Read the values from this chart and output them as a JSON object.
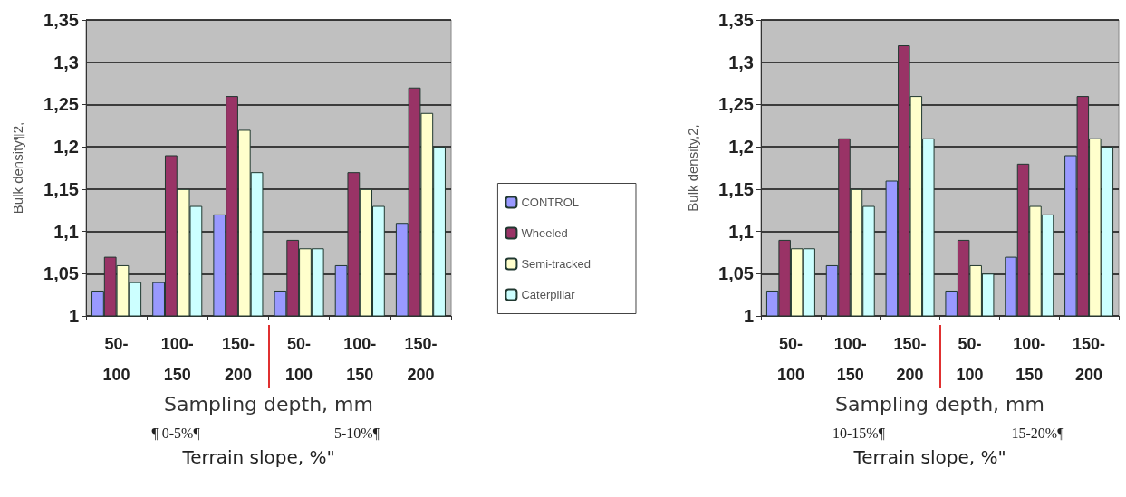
{
  "chart_data": [
    {
      "type": "bar",
      "ylabel": "Bulk density¶2,",
      "xlabel": "Sampling depth, mm",
      "categories": [
        "50-100",
        "100-150",
        "150-200",
        "50-100",
        "100-150",
        "150-200"
      ],
      "series": [
        {
          "name": "CONTROL",
          "color": "#9999ff",
          "values": [
            1.03,
            1.04,
            1.12,
            1.03,
            1.06,
            1.11
          ]
        },
        {
          "name": "Wheeled",
          "color": "#993366",
          "values": [
            1.07,
            1.19,
            1.26,
            1.09,
            1.17,
            1.27
          ]
        },
        {
          "name": "Semi-tracked",
          "color": "#ffffcc",
          "values": [
            1.06,
            1.15,
            1.22,
            1.08,
            1.15,
            1.24
          ]
        },
        {
          "name": "Caterpillar",
          "color": "#ccffff",
          "values": [
            1.04,
            1.13,
            1.17,
            1.08,
            1.13,
            1.2
          ]
        }
      ],
      "ylim": [
        1,
        1.35
      ],
      "yticks": [
        1,
        {
          "value": 1.05,
          "label": "1,05"
        },
        {
          "value": 1.1,
          "label": "1,1"
        },
        {
          "value": 1.15,
          "label": "1,15"
        },
        {
          "value": 1.2,
          "label": "1,2"
        },
        {
          "value": 1.25,
          "label": "1,25"
        },
        {
          "value": 1.3,
          "label": "1,3"
        },
        {
          "value": 1.35,
          "label": "1,35"
        }
      ],
      "grid": "y",
      "legend": "right",
      "annotations": [
        "¶ 0-5%¶",
        "5-10%¶",
        "Terrain slope, %\""
      ]
    },
    {
      "type": "bar",
      "ylabel": "Bulk density,2,",
      "xlabel": "Sampling depth, mm",
      "categories": [
        "50-100",
        "100-150",
        "150-200",
        "50-100",
        "100-150",
        "150-200"
      ],
      "series": [
        {
          "color": "#9999ff",
          "values": [
            1.03,
            1.06,
            1.16,
            1.03,
            1.07,
            1.19
          ]
        },
        {
          "color": "#993366",
          "values": [
            1.09,
            1.21,
            1.32,
            1.09,
            1.18,
            1.26
          ]
        },
        {
          "color": "#ffffcc",
          "values": [
            1.08,
            1.15,
            1.26,
            1.06,
            1.13,
            1.21
          ]
        },
        {
          "color": "#ccffff",
          "values": [
            1.08,
            1.13,
            1.21,
            1.05,
            1.12,
            1.2
          ]
        }
      ],
      "ylim": [
        1,
        1.35
      ],
      "yticks": [
        1,
        {
          "value": 1.05,
          "label": "1,05"
        },
        {
          "value": 1.1,
          "label": "1,1"
        },
        {
          "value": 1.15,
          "label": "1,15"
        },
        {
          "value": 1.2,
          "label": "1,2"
        },
        {
          "value": 1.25,
          "label": "1,25"
        },
        {
          "value": 1.3,
          "label": "1,3"
        },
        {
          "value": 1.35,
          "label": "1,35"
        }
      ],
      "grid": "y",
      "annotations": [
        "10-15%¶",
        "15-20%¶",
        "Terrain slope, %\""
      ]
    }
  ]
}
